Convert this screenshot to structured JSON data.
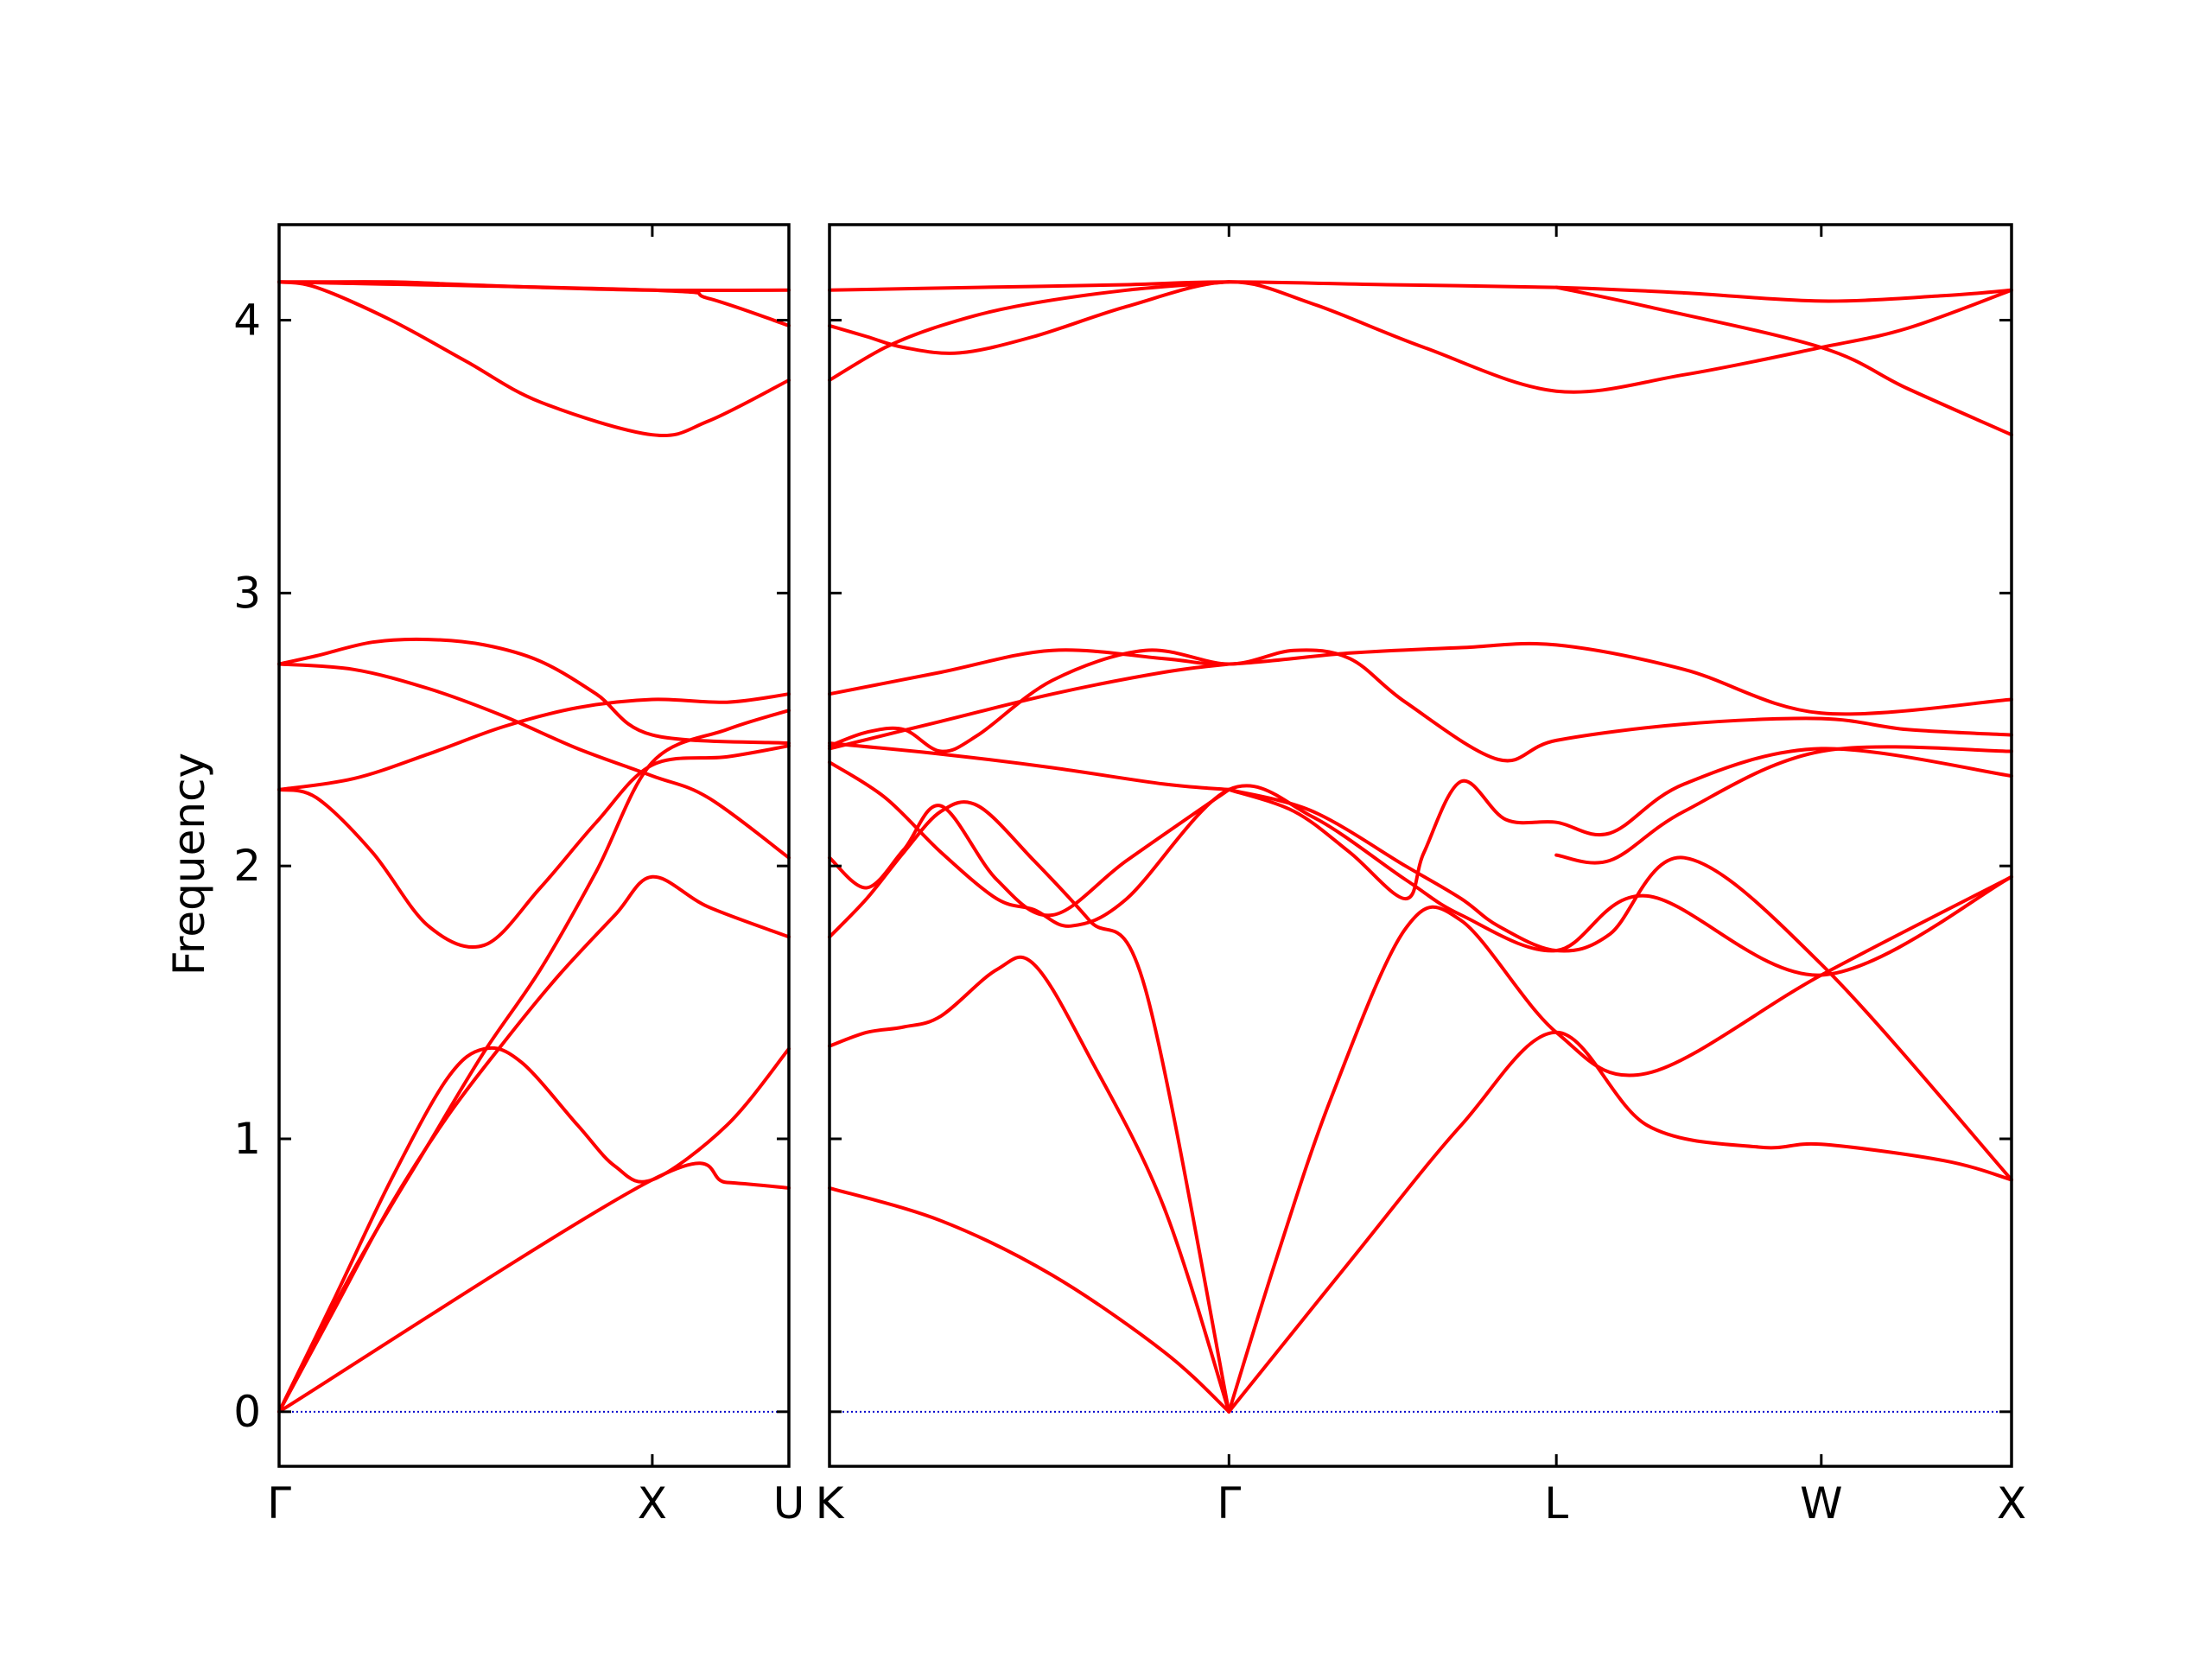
{
  "chart_data": {
    "type": "line",
    "title": "",
    "ylabel": "Frequency",
    "ylim": [
      -0.2,
      4.35
    ],
    "yticks": [
      0,
      1,
      2,
      3,
      4
    ],
    "ytick_labels": [
      "0",
      "1",
      "2",
      "3",
      "4"
    ],
    "grid": false,
    "legend": "none",
    "colors": {
      "bands": "#ff0000",
      "zero_line": "#0000cc",
      "axes": "#000000"
    },
    "panels": [
      {
        "name": "Γ-X-U",
        "x_range": [
          0,
          1.366
        ],
        "xticks": [
          0,
          1.0,
          1.366
        ],
        "xtick_labels": [
          "Γ",
          "X",
          "U"
        ],
        "series": [
          {
            "x": [
              0,
              0.1,
              0.3,
              0.5,
              0.7,
              1.0,
              1.366
            ],
            "y": [
              4.14,
              4.14,
              4.14,
              4.13,
              4.12,
              4.11,
              4.11
            ]
          },
          {
            "x": [
              0,
              0.1,
              0.3,
              0.5,
              0.7,
              1.0,
              1.15,
              1.366
            ],
            "y": [
              4.14,
              4.12,
              4.0,
              3.85,
              3.7,
              3.58,
              3.63,
              3.78
            ]
          },
          {
            "x": [
              0,
              1.0,
              1.15,
              1.366
            ],
            "y": [
              4.14,
              4.11,
              4.08,
              3.98
            ]
          },
          {
            "x": [
              0,
              0.1,
              0.25,
              0.4,
              0.55,
              0.7,
              0.85,
              1.0,
              1.366
            ],
            "y": [
              2.74,
              2.77,
              2.82,
              2.83,
              2.81,
              2.75,
              2.63,
              2.48,
              2.45
            ]
          },
          {
            "x": [
              0,
              0.2,
              0.4,
              0.6,
              0.8,
              1.0,
              1.15,
              1.366
            ],
            "y": [
              2.74,
              2.72,
              2.65,
              2.55,
              2.43,
              2.33,
              2.25,
              2.03
            ]
          },
          {
            "x": [
              0,
              0.2,
              0.4,
              0.6,
              0.8,
              1.0,
              1.2,
              1.366
            ],
            "y": [
              2.28,
              2.32,
              2.41,
              2.51,
              2.58,
              2.61,
              2.6,
              2.63
            ]
          },
          {
            "x": [
              0,
              0.1,
              0.25,
              0.4,
              0.55,
              0.7,
              0.85,
              1.0,
              1.2,
              1.366
            ],
            "y": [
              2.28,
              2.25,
              2.05,
              1.78,
              1.71,
              1.92,
              2.16,
              2.37,
              2.4,
              2.44
            ]
          },
          {
            "x": [
              0,
              0.15,
              0.3,
              0.45,
              0.6,
              0.75,
              0.9,
              1.0,
              1.15,
              1.366
            ],
            "y": [
              0,
              0.38,
              0.76,
              1.08,
              1.35,
              1.6,
              1.82,
              1.96,
              1.85,
              1.74
            ]
          },
          {
            "x": [
              0,
              0.15,
              0.3,
              0.45,
              0.55,
              0.65,
              0.8,
              0.9,
              1.0,
              1.2,
              1.366
            ],
            "y": [
              0,
              0.42,
              0.85,
              1.22,
              1.33,
              1.28,
              1.05,
              0.9,
              0.85,
              1.05,
              1.33
            ]
          },
          {
            "x": [
              0,
              0.2,
              0.4,
              0.55,
              0.7,
              0.85,
              1.0,
              1.2,
              1.366
            ],
            "y": [
              0,
              0.52,
              0.98,
              1.32,
              1.62,
              1.98,
              2.38,
              2.5,
              2.57
            ]
          },
          {
            "x": [
              0,
              1.0,
              1.2,
              1.366
            ],
            "y": [
              0,
              0.85,
              0.84,
              0.82
            ]
          }
        ]
      },
      {
        "name": "K-Γ-L-W-X",
        "x_range": [
          0,
          3.181
        ],
        "xticks": [
          0,
          1.075,
          1.956,
          2.669,
          3.181
        ],
        "xtick_labels": [
          "K",
          "Γ",
          "L",
          "W",
          "X"
        ],
        "series": [
          {
            "x": [
              0,
              0.4,
              0.8,
              1.075,
              1.5,
              1.956,
              2.3,
              2.669,
              3.0,
              3.181
            ],
            "y": [
              4.11,
              4.12,
              4.13,
              4.14,
              4.13,
              4.12,
              4.1,
              4.07,
              4.09,
              4.11
            ]
          },
          {
            "x": [
              0,
              0.15,
              0.3,
              0.5,
              0.8,
              1.075
            ],
            "y": [
              3.78,
              3.9,
              3.98,
              4.05,
              4.11,
              4.14
            ]
          },
          {
            "x": [
              0,
              0.1,
              0.2,
              0.35,
              0.55,
              0.8,
              1.075,
              1.3,
              1.6,
              1.956,
              2.3,
              2.669,
              2.9,
              3.181
            ],
            "y": [
              3.98,
              3.94,
              3.9,
              3.88,
              3.94,
              4.05,
              4.14,
              4.06,
              3.9,
              3.74,
              3.8,
              3.9,
              3.97,
              4.11
            ]
          },
          {
            "x": [
              1.956,
              2.2,
              2.669,
              2.9,
              3.181
            ],
            "y": [
              4.12,
              4.05,
              3.9,
              3.75,
              3.58
            ]
          },
          {
            "x": [
              0,
              0.3,
              0.6,
              0.9,
              1.075,
              1.4,
              1.7,
              1.956,
              2.3,
              2.669,
              3.181
            ],
            "y": [
              2.63,
              2.71,
              2.79,
              2.76,
              2.74,
              2.78,
              2.8,
              2.81,
              2.72,
              2.56,
              2.61
            ]
          },
          {
            "x": [
              0,
              0.1,
              0.2,
              0.3,
              0.4,
              0.6,
              0.85,
              1.075,
              1.25,
              1.4,
              1.55,
              1.8,
              1.956,
              2.3,
              2.669,
              2.9,
              3.181
            ],
            "y": [
              2.44,
              2.49,
              2.5,
              2.42,
              2.48,
              2.68,
              2.79,
              2.74,
              2.79,
              2.76,
              2.6,
              2.39,
              2.46,
              2.52,
              2.54,
              2.5,
              2.48
            ]
          },
          {
            "x": [
              0,
              0.3,
              0.6,
              0.9,
              1.075
            ],
            "y": [
              2.43,
              2.53,
              2.63,
              2.71,
              2.74
            ]
          },
          {
            "x": [
              0,
              0.3,
              0.6,
              0.9,
              1.075
            ],
            "y": [
              2.45,
              2.41,
              2.36,
              2.3,
              2.28
            ]
          },
          {
            "x": [
              0,
              0.15,
              0.3,
              0.45,
              0.55,
              0.65,
              0.8,
              1.075,
              1.3,
              1.55,
              1.7,
              1.956,
              2.2,
              2.669,
              3.181
            ],
            "y": [
              2.38,
              2.25,
              2.05,
              1.88,
              1.84,
              1.78,
              1.88,
              2.28,
              2.18,
              1.95,
              1.82,
              1.69,
              1.89,
              1.6,
              1.96
            ]
          },
          {
            "x": [
              1.075,
              1.3,
              1.55,
              1.7,
              1.8,
              1.956,
              2.1,
              2.3,
              2.669,
              3.181
            ],
            "y": [
              2.28,
              2.2,
              2.0,
              1.88,
              1.78,
              1.69,
              1.75,
              2.03,
              1.64,
              0.85
            ]
          },
          {
            "x": [
              0,
              0.1,
              0.2,
              0.3,
              0.45,
              0.6,
              0.8,
              1.075
            ],
            "y": [
              2.03,
              1.92,
              2.06,
              2.22,
              1.95,
              1.82,
              2.02,
              2.28
            ]
          },
          {
            "x": [
              1.075,
              1.25,
              1.4,
              1.55,
              1.6,
              1.7,
              1.82,
              1.956,
              2.1,
              2.3,
              2.669,
              3.181
            ],
            "y": [
              2.28,
              2.2,
              2.05,
              1.88,
              2.05,
              2.31,
              2.17,
              2.16,
              2.12,
              2.3,
              2.43,
              2.33
            ]
          },
          {
            "x": [
              1.956,
              2.1,
              2.3,
              2.669,
              3.181
            ],
            "y": [
              2.04,
              2.02,
              2.2,
              2.42,
              2.42
            ]
          },
          {
            "x": [
              0,
              0.1,
              0.2,
              0.3,
              0.4,
              0.55,
              0.7,
              0.85,
              1.075
            ],
            "y": [
              1.74,
              1.88,
              2.05,
              2.2,
              2.22,
              2.02,
              1.8,
              1.55,
              0
            ]
          },
          {
            "x": [
              0,
              0.1,
              0.2,
              0.3,
              0.45,
              0.55,
              0.7,
              0.9,
              1.075
            ],
            "y": [
              1.34,
              1.39,
              1.41,
              1.45,
              1.62,
              1.64,
              1.3,
              0.75,
              0
            ]
          },
          {
            "x": [
              1.075,
              1.2,
              1.35,
              1.55,
              1.7,
              1.956,
              2.2,
              2.669,
              3.181
            ],
            "y": [
              0,
              0.55,
              1.15,
              1.77,
              1.8,
              1.39,
              1.24,
              1.6,
              1.96
            ]
          },
          {
            "x": [
              1.075,
              1.4,
              1.7,
              1.956,
              2.2,
              2.5,
              2.669,
              3.0,
              3.181
            ],
            "y": [
              0,
              0.55,
              1.05,
              1.39,
              1.05,
              0.97,
              0.98,
              0.92,
              0.85
            ]
          },
          {
            "x": [
              0,
              0.3,
              0.6,
              0.9,
              1.075
            ],
            "y": [
              0.82,
              0.7,
              0.5,
              0.22,
              0
            ]
          }
        ]
      }
    ]
  }
}
